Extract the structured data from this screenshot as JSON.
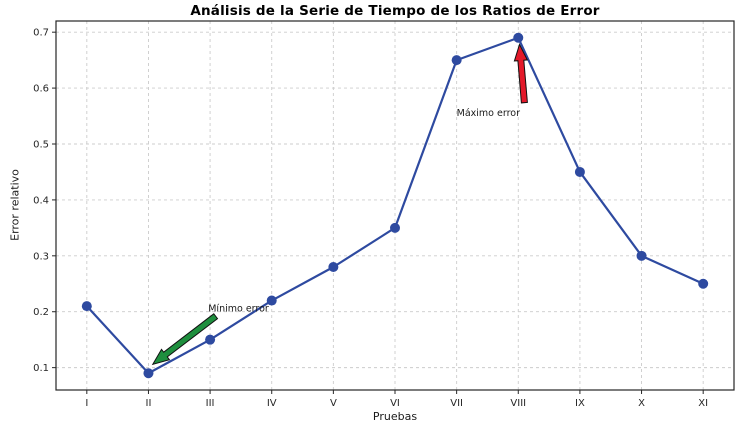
{
  "figure": {
    "background": "#ffffff"
  },
  "chart_data": {
    "type": "line",
    "title": "Análisis de la Serie de Tiempo de los Ratios de Error",
    "xlabel": "Pruebas",
    "ylabel": "Error relativo",
    "categories": [
      "I",
      "II",
      "III",
      "IV",
      "V",
      "VI",
      "VII",
      "VIII",
      "IX",
      "X",
      "XI"
    ],
    "values": [
      0.21,
      0.09,
      0.15,
      0.22,
      0.28,
      0.35,
      0.65,
      0.69,
      0.45,
      0.3,
      0.25
    ],
    "yticks": [
      0.1,
      0.2,
      0.3,
      0.4,
      0.5,
      0.6,
      0.7
    ],
    "ylim": [
      0.06,
      0.72
    ],
    "xlim": [
      -0.5,
      10.5
    ],
    "grid": true,
    "legend": "none",
    "colors": {
      "line": "#2e4aa0",
      "marker": "#2e4aa0",
      "grid": "#cccccc",
      "spine": "#262626",
      "tick_text": "#262626",
      "annotation_text": "#1a1a1a"
    },
    "annotations": [
      {
        "text": "Máximo error",
        "text_at": [
          6.0,
          0.55
        ],
        "arrow_tail": [
          7.1,
          0.574
        ],
        "arrow_tip": [
          7.02,
          0.678
        ],
        "arrow_color": "#e3192a"
      },
      {
        "text": "Mínimo error",
        "text_at": [
          1.97,
          0.2
        ],
        "arrow_tail": [
          2.09,
          0.192
        ],
        "arrow_tip": [
          1.07,
          0.106
        ],
        "arrow_color": "#1e8f3e"
      }
    ]
  }
}
